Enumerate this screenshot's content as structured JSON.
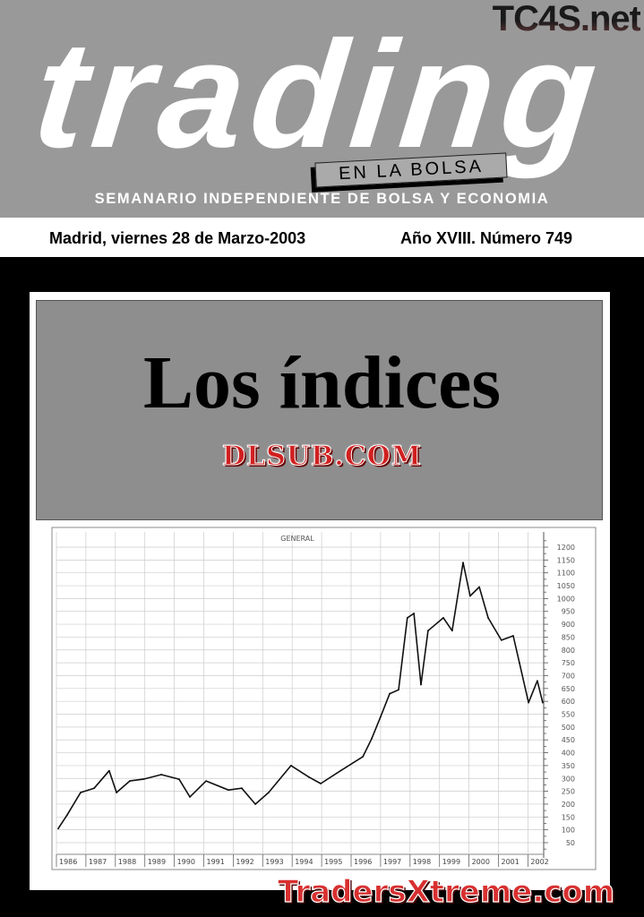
{
  "header": {
    "logo": "trading",
    "logo_sub": "EN LA BOLSA",
    "watermark": "TC4S.net",
    "subtitle": "SEMANARIO INDEPENDIENTE DE BOLSA Y ECONOMIA"
  },
  "dateline": {
    "date": "Madrid, viernes 28 de Marzo-2003",
    "issue": "Año XVIII. Número 749"
  },
  "cover": {
    "headline": "Los índices",
    "watermark_top": "DLSUB.COM",
    "watermark_bottom": "TradersXtreme.com"
  },
  "chart_data": {
    "type": "line",
    "title": "GENERAL",
    "xlabel": "",
    "ylabel": "",
    "x_tick_labels": [
      "1986",
      "1987",
      "1988",
      "1989",
      "1990",
      "1991",
      "1992",
      "1993",
      "1994",
      "1995",
      "1996",
      "1997",
      "1998",
      "1999",
      "2000",
      "2001",
      "2002"
    ],
    "y_ticks": [
      50,
      100,
      150,
      200,
      250,
      300,
      350,
      400,
      450,
      500,
      550,
      600,
      650,
      700,
      750,
      800,
      850,
      900,
      950,
      1000,
      1050,
      1100,
      1150,
      1200
    ],
    "ylim": [
      0,
      1230
    ],
    "xlim": [
      1986,
      2003
    ],
    "grid": true,
    "y_axis_side": "right",
    "series": [
      {
        "x": [
          1986.06,
          1986.36,
          1986.82,
          1987.28,
          1987.79,
          1988.04,
          1988.49,
          1988.95,
          1989.56,
          1990.16,
          1990.53,
          1991.08,
          1991.84,
          1992.29,
          1992.75,
          1993.2,
          1993.96,
          1994.57,
          1994.97,
          1995.64,
          1996.4,
          1996.7,
          1997.0,
          1997.31,
          1997.61,
          1997.91,
          1998.13,
          1998.37,
          1998.61,
          1999.13,
          1999.43,
          1999.8,
          2000.04,
          2000.35,
          2000.65,
          2001.1,
          2001.5,
          2001.71,
          2002.02,
          2002.32,
          2002.5
        ],
        "values": [
          105,
          157,
          245,
          262,
          330,
          245,
          290,
          297,
          315,
          297,
          228,
          290,
          255,
          262,
          200,
          245,
          350,
          305,
          280,
          330,
          385,
          455,
          540,
          630,
          645,
          925,
          942,
          665,
          875,
          925,
          875,
          1140,
          1010,
          1045,
          925,
          838,
          855,
          750,
          595,
          680,
          595
        ]
      }
    ]
  }
}
